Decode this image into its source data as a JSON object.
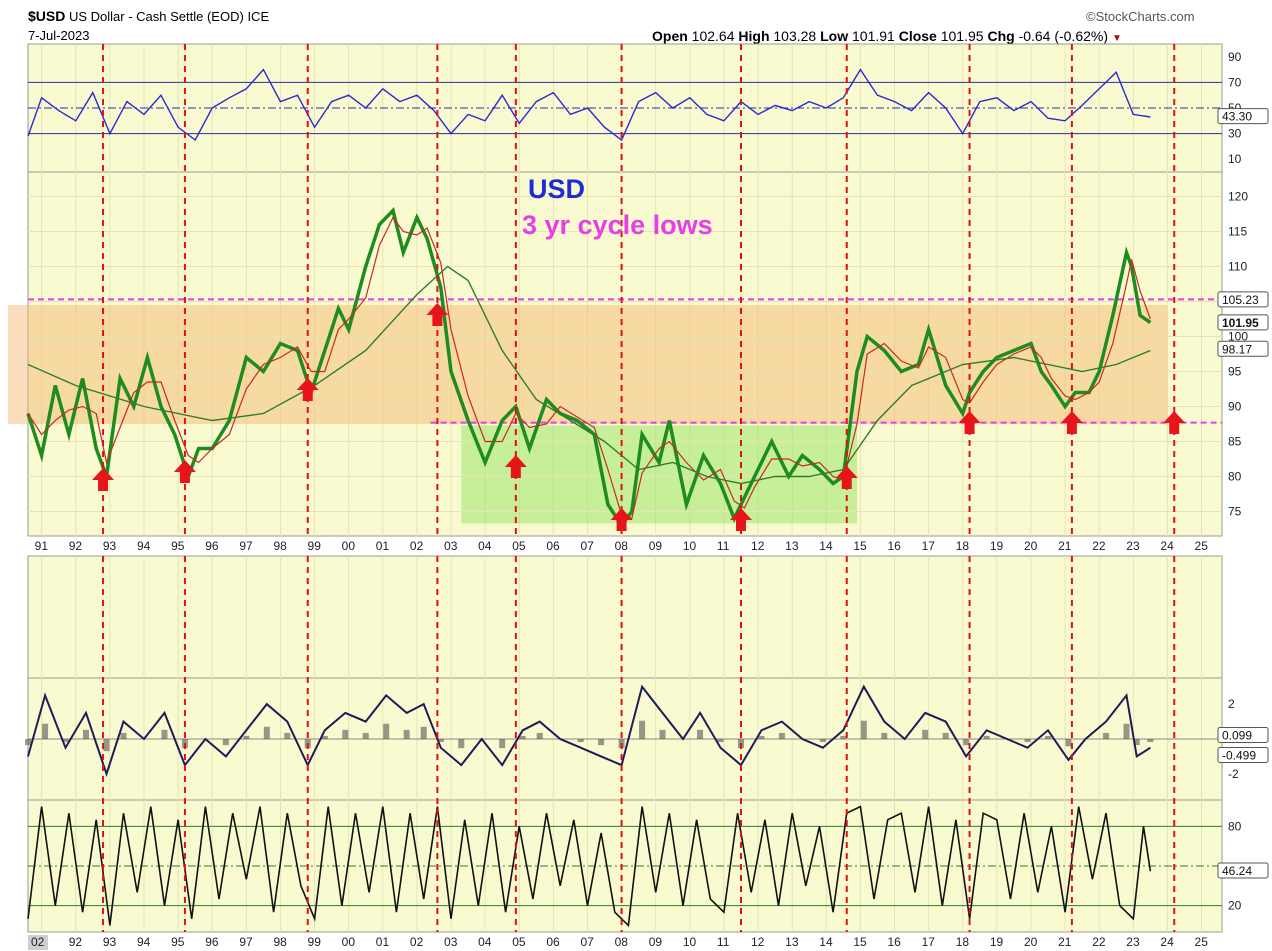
{
  "header": {
    "symbol": "$USD",
    "name": "US Dollar - Cash Settle (EOD)",
    "exchange": "ICE",
    "date": "7-Jul-2023",
    "source": "©StockCharts.com",
    "open_label": "Open",
    "open": "102.64",
    "high_label": "High",
    "high": "103.28",
    "low_label": "Low",
    "low": "101.91",
    "close_label": "Close",
    "close": "101.95",
    "chg_label": "Chg",
    "chg": "-0.64 (-0.62%)"
  },
  "annotations": {
    "title_text": "USD",
    "subtitle_text": "3 yr cycle lows",
    "colors": {
      "title": "#1f2bd8",
      "subtitle": "#e83ee8",
      "arrows": "#e8141c",
      "cycle_lines": "#e01010"
    }
  },
  "chart_data": [
    {
      "type": "line",
      "panel": "rsi",
      "y_ticks": [
        90,
        70,
        50,
        30,
        10
      ],
      "ylim": [
        0,
        100
      ],
      "reference_lines": [
        70,
        50,
        30
      ],
      "last_value_label": "43.30",
      "x": [
        1990.6,
        1991.0,
        1991.5,
        1992.0,
        1992.5,
        1993.0,
        1993.5,
        1994.0,
        1994.5,
        1995.0,
        1995.5,
        1996.0,
        1996.5,
        1997.0,
        1997.5,
        1998.0,
        1998.5,
        1999.0,
        1999.5,
        2000.0,
        2000.5,
        2001.0,
        2001.5,
        2002.0,
        2002.5,
        2003.0,
        2003.5,
        2004.0,
        2004.5,
        2005.0,
        2005.5,
        2006.0,
        2006.5,
        2007.0,
        2007.5,
        2008.0,
        2008.5,
        2009.0,
        2009.5,
        2010.0,
        2010.5,
        2011.0,
        2011.5,
        2012.0,
        2012.5,
        2013.0,
        2013.5,
        2014.0,
        2014.5,
        2015.0,
        2015.5,
        2016.0,
        2016.5,
        2017.0,
        2017.5,
        2018.0,
        2018.5,
        2019.0,
        2019.5,
        2020.0,
        2020.5,
        2021.0,
        2021.5,
        2022.0,
        2022.5,
        2023.0,
        2023.5
      ],
      "values": [
        28,
        58,
        48,
        40,
        62,
        30,
        55,
        45,
        60,
        35,
        25,
        50,
        58,
        65,
        80,
        55,
        60,
        35,
        55,
        60,
        50,
        65,
        55,
        60,
        48,
        30,
        45,
        40,
        60,
        38,
        55,
        62,
        45,
        50,
        35,
        25,
        55,
        62,
        50,
        58,
        45,
        40,
        55,
        45,
        52,
        48,
        55,
        50,
        58,
        80,
        60,
        55,
        48,
        62,
        50,
        30,
        55,
        58,
        48,
        55,
        42,
        40,
        52,
        65,
        78,
        45,
        43
      ]
    },
    {
      "type": "line",
      "panel": "price",
      "series": [
        {
          "name": "",
          "role": "price",
          "color": "#1e8c1e"
        },
        {
          "name": "",
          "role": "short moving average",
          "color": "#c82828"
        },
        {
          "name": "",
          "role": "long moving average",
          "color": "#2e7d2e"
        }
      ],
      "x": [
        1990.6,
        1991.0,
        1991.4,
        1991.8,
        1992.2,
        1992.6,
        1992.9,
        1993.3,
        1993.7,
        1994.1,
        1994.5,
        1994.9,
        1995.3,
        1995.6,
        1996.0,
        1996.5,
        1997.0,
        1997.5,
        1998.0,
        1998.5,
        1998.9,
        1999.3,
        1999.7,
        2000.0,
        2000.5,
        2000.9,
        2001.3,
        2001.6,
        2002.0,
        2002.3,
        2002.7,
        2003.0,
        2003.5,
        2004.0,
        2004.5,
        2004.9,
        2005.3,
        2005.8,
        2006.2,
        2006.7,
        2007.2,
        2007.6,
        2008.0,
        2008.3,
        2008.6,
        2009.1,
        2009.4,
        2009.9,
        2010.4,
        2010.9,
        2011.3,
        2011.6,
        2011.9,
        2012.4,
        2012.9,
        2013.3,
        2013.8,
        2014.2,
        2014.5,
        2014.9,
        2015.2,
        2015.7,
        2016.2,
        2016.7,
        2017.0,
        2017.5,
        2018.0,
        2018.2,
        2018.6,
        2019.0,
        2019.5,
        2020.0,
        2020.3,
        2020.6,
        2021.0,
        2021.3,
        2021.7,
        2022.0,
        2022.4,
        2022.8,
        2022.95,
        2023.2,
        2023.5
      ],
      "values": [
        89,
        83,
        93,
        86,
        94,
        84,
        80,
        94,
        90,
        97,
        90,
        86,
        80,
        84,
        84,
        88,
        97,
        95,
        99,
        98,
        92,
        98,
        104,
        101,
        110,
        116,
        118,
        112,
        117,
        114,
        107,
        95,
        88,
        82,
        88,
        90,
        84,
        91,
        89,
        88,
        86,
        76,
        73,
        75,
        86,
        82,
        88,
        76,
        83,
        79,
        74,
        77,
        80,
        85,
        80,
        83,
        81,
        79,
        80,
        95,
        100,
        98,
        95,
        96,
        101,
        93,
        89,
        92,
        95,
        97,
        98,
        99,
        95,
        93,
        90,
        92,
        92,
        95,
        103,
        112,
        110,
        103,
        102
      ]
    },
    {
      "type": "line",
      "panel": "price",
      "role": "long moving average",
      "x": [
        1990.6,
        1992.0,
        1994.0,
        1996.0,
        1997.5,
        1999.0,
        2000.5,
        2002.0,
        2002.9,
        2003.5,
        2004.5,
        2005.5,
        2006.5,
        2007.5,
        2008.5,
        2009.5,
        2010.5,
        2011.5,
        2012.5,
        2013.5,
        2014.5,
        2015.5,
        2016.5,
        2018.0,
        2019.5,
        2020.5,
        2021.5,
        2022.5,
        2023.5
      ],
      "values": [
        96,
        93,
        90,
        88,
        89,
        93,
        98,
        106,
        110,
        108,
        98,
        91,
        88,
        85,
        81,
        82,
        80,
        79,
        80,
        80,
        81,
        88,
        93,
        96,
        97,
        96,
        95,
        96,
        98
      ]
    },
    {
      "type": "line",
      "panel": "macd",
      "y_ticks": [
        2,
        -2
      ],
      "ylim": [
        -3.5,
        3.5
      ],
      "last_value_labels": [
        "0.099",
        "-0.499"
      ],
      "x": [
        1990.6,
        1991.1,
        1991.7,
        1992.3,
        1992.9,
        1993.4,
        1994.0,
        1994.6,
        1995.2,
        1995.8,
        1996.4,
        1997.0,
        1997.6,
        1998.2,
        1998.8,
        1999.3,
        1999.9,
        2000.5,
        2001.1,
        2001.7,
        2002.2,
        2002.7,
        2003.3,
        2003.9,
        2004.5,
        2005.1,
        2005.6,
        2006.2,
        2006.8,
        2007.4,
        2008.0,
        2008.6,
        2009.2,
        2009.8,
        2010.3,
        2010.9,
        2011.5,
        2012.1,
        2012.7,
        2013.3,
        2013.9,
        2014.5,
        2015.1,
        2015.7,
        2016.3,
        2016.9,
        2017.5,
        2018.1,
        2018.7,
        2019.3,
        2019.9,
        2020.5,
        2021.1,
        2021.6,
        2022.2,
        2022.8,
        2023.1,
        2023.5
      ],
      "values": [
        -1,
        2.5,
        -0.5,
        1.5,
        -2,
        1.0,
        0,
        1.5,
        -1.5,
        0,
        -1,
        0.5,
        2,
        1,
        -1.5,
        0.5,
        1.5,
        1,
        2.5,
        1.5,
        2.0,
        -0.5,
        -1.5,
        0,
        -1.5,
        0.5,
        1,
        0,
        -0.5,
        -1,
        -1.5,
        3.0,
        1.5,
        0,
        1.5,
        -0.5,
        -1.5,
        0.5,
        1,
        0,
        -0.5,
        0.5,
        3,
        1,
        0,
        1.5,
        1,
        -1.0,
        0.5,
        0,
        -0.5,
        0.5,
        -1.2,
        0,
        1,
        2.5,
        -1.0,
        -0.5
      ]
    },
    {
      "type": "line",
      "panel": "stochastic",
      "y_ticks": [
        80,
        20
      ],
      "ylim": [
        0,
        100
      ],
      "reference_lines": [
        80,
        50,
        20
      ],
      "last_value_label": "46.24",
      "x": [
        1990.6,
        1991.0,
        1991.4,
        1991.8,
        1992.2,
        1992.6,
        1993.0,
        1993.4,
        1993.8,
        1994.2,
        1994.6,
        1995.0,
        1995.4,
        1995.8,
        1996.2,
        1996.6,
        1997.0,
        1997.4,
        1997.8,
        1998.2,
        1998.6,
        1999.0,
        1999.4,
        1999.8,
        2000.2,
        2000.6,
        2001.0,
        2001.4,
        2001.8,
        2002.2,
        2002.6,
        2003.0,
        2003.4,
        2003.8,
        2004.2,
        2004.6,
        2005.0,
        2005.4,
        2005.8,
        2006.2,
        2006.6,
        2007.0,
        2007.4,
        2007.8,
        2008.2,
        2008.6,
        2009.0,
        2009.4,
        2009.8,
        2010.2,
        2010.6,
        2011.0,
        2011.4,
        2011.8,
        2012.2,
        2012.6,
        2013.0,
        2013.4,
        2013.8,
        2014.2,
        2014.6,
        2015.0,
        2015.4,
        2015.8,
        2016.2,
        2016.6,
        2017.0,
        2017.4,
        2017.8,
        2018.2,
        2018.6,
        2019.0,
        2019.4,
        2019.8,
        2020.2,
        2020.6,
        2021.0,
        2021.4,
        2021.8,
        2022.2,
        2022.6,
        2023.0,
        2023.3,
        2023.5
      ],
      "values": [
        10,
        95,
        20,
        90,
        15,
        85,
        5,
        90,
        30,
        95,
        20,
        85,
        10,
        95,
        25,
        90,
        40,
        95,
        15,
        90,
        35,
        10,
        95,
        20,
        90,
        30,
        95,
        15,
        90,
        25,
        95,
        10,
        85,
        20,
        90,
        15,
        80,
        25,
        90,
        35,
        85,
        20,
        75,
        15,
        5,
        95,
        30,
        90,
        20,
        85,
        25,
        15,
        90,
        30,
        85,
        20,
        90,
        35,
        80,
        15,
        90,
        95,
        25,
        85,
        90,
        30,
        95,
        20,
        85,
        10,
        90,
        85,
        25,
        90,
        30,
        80,
        15,
        95,
        40,
        90,
        20,
        10,
        80,
        46
      ]
    }
  ],
  "x_axis": {
    "labels": [
      "91",
      "92",
      "93",
      "94",
      "95",
      "96",
      "97",
      "98",
      "99",
      "00",
      "01",
      "02",
      "03",
      "04",
      "05",
      "06",
      "07",
      "08",
      "09",
      "10",
      "11",
      "12",
      "13",
      "14",
      "15",
      "16",
      "17",
      "18",
      "19",
      "20",
      "21",
      "22",
      "23",
      "24",
      "25"
    ],
    "bottom_first_label": "02",
    "cycle_low_years": [
      1992.8,
      1995.2,
      1998.8,
      2002.6,
      2004.9,
      2008.0,
      2011.5,
      2014.6,
      2018.2,
      2021.2,
      2024.2
    ]
  },
  "price_axis": {
    "y_ticks": [
      120,
      115,
      110,
      105,
      100,
      95,
      90,
      85,
      80,
      75
    ],
    "ylim": [
      71.5,
      123.5
    ],
    "value_labels": [
      "105.23",
      "101.95",
      "98.17"
    ],
    "resistance_level": 105.3,
    "support_level": 87.7,
    "box_orange_range": [
      87.5,
      104.5
    ],
    "box_green_range": [
      73.3,
      87.3
    ]
  }
}
